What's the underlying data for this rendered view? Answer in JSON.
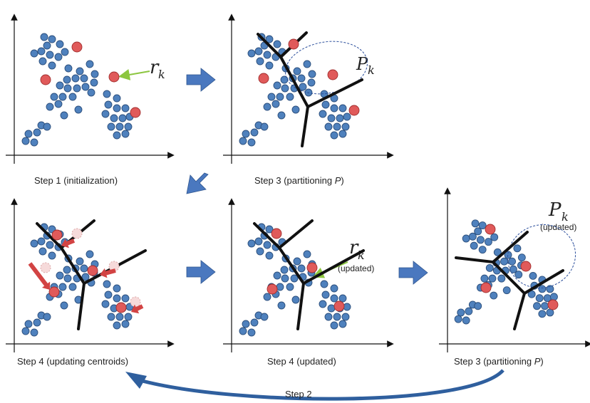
{
  "captions": {
    "p1": "Step 1 (initialization)",
    "p2": "Step 3 (partitioning ",
    "p3": "Step 4 (updating centroids)",
    "p4": "Step 4 (updated)",
    "p5": "Step 3 (partitioning ",
    "italic_p": "P",
    "close_paren": ")"
  },
  "labels": {
    "r": "r",
    "P": "P",
    "k": "k",
    "updated": "(updated)",
    "step2": "Step 2"
  },
  "colors": {
    "point": "#4f81bd",
    "point_edge": "#2c4f7c",
    "centroid": "#e05a5a",
    "centroid_edge": "#a12e2e",
    "ghost": "#f6dada",
    "arrow": "#4a78bf",
    "red_arrow": "#d24343",
    "line": "#111111"
  }
}
